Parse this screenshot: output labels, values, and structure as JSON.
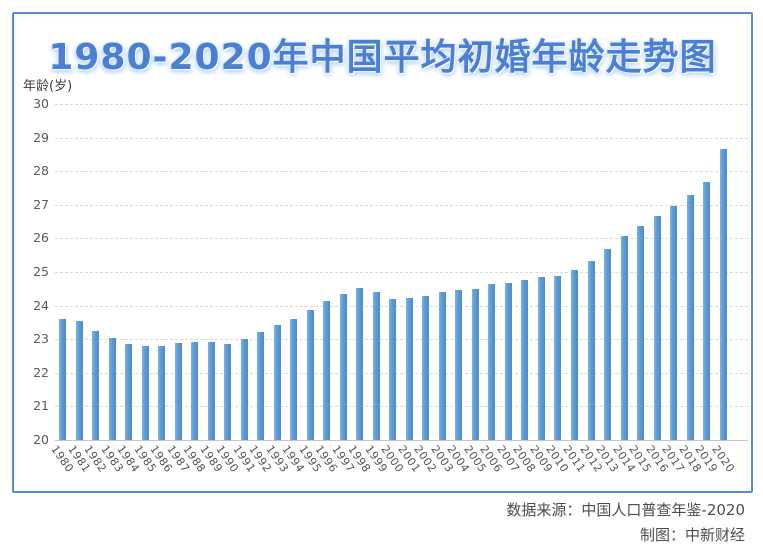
{
  "title": "1980-2020年中国平均初婚年龄走势图",
  "y_axis_label": "年龄(岁)",
  "footer": {
    "source": "数据来源：中国人口普查年鉴-2020",
    "credit": "制图：中新财经"
  },
  "colors": {
    "bar": "#5B9BD5",
    "bar_edge": "#4C8CC9",
    "card_border": "#5B8BD8",
    "title_text": "#4A7FD4",
    "title_glow": "#B9D5F2",
    "gridline": "#D9D9D9",
    "axis_text": "#595959",
    "footer_text": "#4D4D4D"
  },
  "chart_data": {
    "type": "bar",
    "title": "1980-2020年中国平均初婚年龄走势图",
    "xlabel": "",
    "ylabel": "年龄(岁)",
    "ylim": [
      20,
      30
    ],
    "y_ticks": [
      20,
      21,
      22,
      23,
      24,
      25,
      26,
      27,
      28,
      29,
      30
    ],
    "grid": "horizontal-dashed",
    "legend_position": "none",
    "categories": [
      "1980",
      "1981",
      "1982",
      "1983",
      "1984",
      "1985",
      "1986",
      "1987",
      "1988",
      "1989",
      "1990",
      "1991",
      "1992",
      "1993",
      "1994",
      "1995",
      "1996",
      "1997",
      "1998",
      "1999",
      "2000",
      "2001",
      "2002",
      "2003",
      "2004",
      "2005",
      "2006",
      "2007",
      "2008",
      "2009",
      "2010",
      "2011",
      "2012",
      "2013",
      "2014",
      "2015",
      "2016",
      "2017",
      "2018",
      "2019",
      "2020"
    ],
    "values": [
      23.59,
      23.54,
      23.25,
      23.04,
      22.85,
      22.81,
      22.81,
      22.88,
      22.92,
      22.91,
      22.86,
      23.0,
      23.21,
      23.41,
      23.6,
      23.88,
      24.13,
      24.35,
      24.52,
      24.4,
      24.21,
      24.24,
      24.28,
      24.42,
      24.46,
      24.5,
      24.65,
      24.66,
      24.76,
      24.86,
      24.89,
      25.07,
      25.32,
      25.7,
      26.06,
      26.38,
      26.68,
      26.97,
      27.28,
      27.67,
      28.67
    ]
  }
}
